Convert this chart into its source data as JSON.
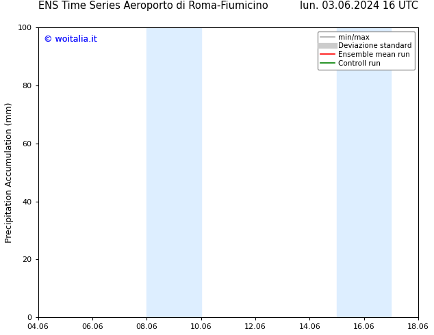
{
  "title_left": "ENS Time Series Aeroporto di Roma-Fiumicino",
  "title_right": "lun. 03.06.2024 16 UTC",
  "xlabel": "",
  "ylabel": "Precipitation Accumulation (mm)",
  "ylim": [
    0,
    100
  ],
  "xlim_start": 4.06,
  "xlim_end": 18.06,
  "xtick_labels": [
    "04.06",
    "06.06",
    "08.06",
    "10.06",
    "12.06",
    "14.06",
    "16.06",
    "18.06"
  ],
  "xtick_positions": [
    4.06,
    6.06,
    8.06,
    10.06,
    12.06,
    14.06,
    16.06,
    18.06
  ],
  "ytick_positions": [
    0,
    20,
    40,
    60,
    80,
    100
  ],
  "shaded_bands": [
    {
      "x_start": 8.06,
      "x_end": 10.06,
      "color": "#ddeeff"
    },
    {
      "x_start": 15.06,
      "x_end": 17.06,
      "color": "#ddeeff"
    }
  ],
  "legend_items": [
    {
      "label": "min/max",
      "color": "#aaaaaa",
      "linestyle": "-",
      "linewidth": 1.2
    },
    {
      "label": "Deviazione standard",
      "color": "#cccccc",
      "linestyle": "-",
      "linewidth": 6
    },
    {
      "label": "Ensemble mean run",
      "color": "red",
      "linestyle": "-",
      "linewidth": 1.2
    },
    {
      "label": "Controll run",
      "color": "green",
      "linestyle": "-",
      "linewidth": 1.2
    }
  ],
  "watermark_text": "© woitalia.it",
  "watermark_color": "#1a1aff",
  "background_color": "#ffffff",
  "font_family": "DejaVu Sans",
  "title_fontsize": 10.5,
  "axis_label_fontsize": 9,
  "tick_fontsize": 8
}
